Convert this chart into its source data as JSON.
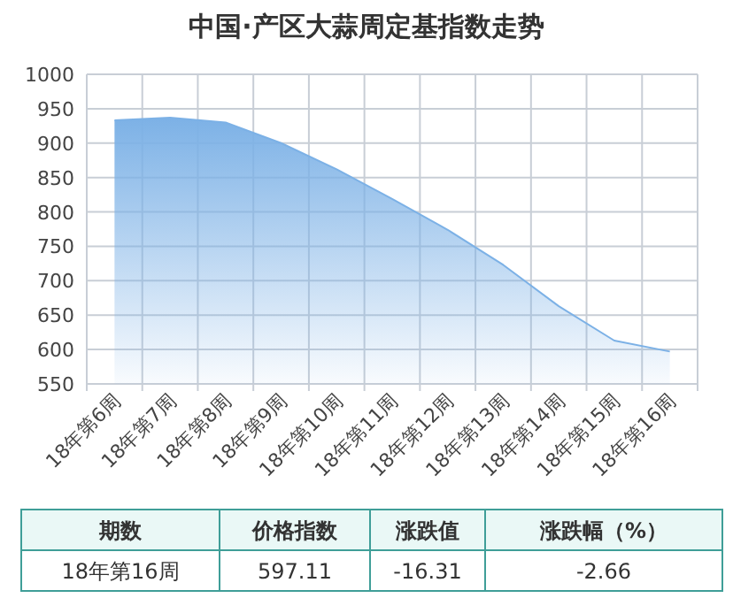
{
  "chart_data": {
    "type": "area",
    "title": "中国·产区大蒜周定基指数走势",
    "categories": [
      "18年第6周",
      "18年第7周",
      "18年第8周",
      "18年第9周",
      "18年第10周",
      "18年第11周",
      "18年第12周",
      "18年第13周",
      "18年第14周",
      "18年第15周",
      "18年第16周"
    ],
    "values": [
      933,
      937,
      930,
      900,
      862,
      819,
      774,
      723,
      663,
      613,
      597.11
    ],
    "color": "#7cb1e6",
    "ylim": [
      550,
      1000
    ],
    "yticks": [
      550,
      600,
      650,
      700,
      750,
      800,
      850,
      900,
      950,
      1000
    ],
    "grid": true,
    "annotations": [
      "期数",
      "价格指数",
      "涨跌值",
      "涨跌幅（%）",
      "18年第16周",
      "597.11",
      "-16.31",
      "-2.66"
    ]
  }
}
